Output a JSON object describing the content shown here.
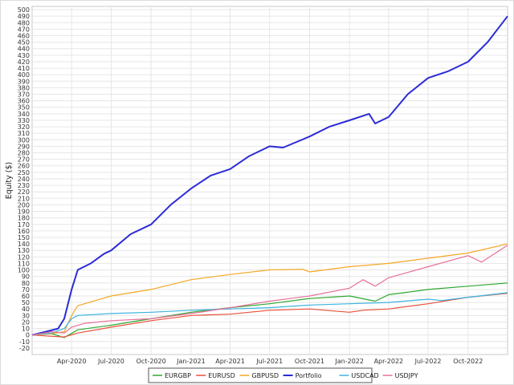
{
  "chart_data": {
    "type": "line",
    "title": "",
    "xlabel": "",
    "ylabel": "Equity ($)",
    "x_ticks": [
      "Apr-2020",
      "Jul-2020",
      "Oct-2020",
      "Jan-2021",
      "Apr-2021",
      "Jul-2021",
      "Oct-2021",
      "Jan-2022",
      "Apr-2022",
      "Jul-2022",
      "Oct-2022"
    ],
    "x_tick_dates": [
      "2020-04-01",
      "2020-07-01",
      "2020-10-01",
      "2021-01-01",
      "2021-04-01",
      "2021-07-01",
      "2021-10-01",
      "2022-01-01",
      "2022-04-01",
      "2022-07-01",
      "2022-10-01"
    ],
    "xlim": [
      "2020-01-01",
      "2022-12-31"
    ],
    "ylim": [
      -30,
      505
    ],
    "y_ticks": [
      -20,
      -10,
      0,
      10,
      20,
      30,
      40,
      50,
      60,
      70,
      80,
      90,
      100,
      110,
      120,
      130,
      140,
      150,
      160,
      170,
      180,
      190,
      200,
      210,
      220,
      230,
      240,
      250,
      260,
      270,
      280,
      290,
      300,
      310,
      320,
      330,
      340,
      350,
      360,
      370,
      380,
      390,
      400,
      410,
      420,
      430,
      440,
      450,
      460,
      470,
      480,
      490,
      500
    ],
    "grid": true,
    "legend_position": "bottom-center",
    "series": [
      {
        "name": "EURGBP",
        "color": "#2ea82e",
        "x": [
          "2020-01-01",
          "2020-02-15",
          "2020-03-15",
          "2020-04-15",
          "2020-07-01",
          "2020-10-01",
          "2021-01-01",
          "2021-04-01",
          "2021-07-01",
          "2021-10-01",
          "2022-01-01",
          "2022-03-01",
          "2022-04-01",
          "2022-07-01",
          "2022-10-01",
          "2022-12-31"
        ],
        "y": [
          0,
          2,
          -4,
          8,
          15,
          25,
          35,
          42,
          48,
          56,
          60,
          52,
          62,
          70,
          75,
          80
        ]
      },
      {
        "name": "EURUSD",
        "color": "#e8503a",
        "x": [
          "2020-01-01",
          "2020-02-15",
          "2020-03-15",
          "2020-04-15",
          "2020-07-01",
          "2020-10-01",
          "2021-01-01",
          "2021-04-01",
          "2021-07-01",
          "2021-10-01",
          "2022-01-01",
          "2022-02-01",
          "2022-04-01",
          "2022-07-01",
          "2022-10-01",
          "2022-12-31"
        ],
        "y": [
          0,
          -2,
          -3,
          3,
          12,
          22,
          30,
          32,
          38,
          40,
          35,
          38,
          40,
          48,
          58,
          64
        ]
      },
      {
        "name": "GBPUSD",
        "color": "#f5a623",
        "x": [
          "2020-01-01",
          "2020-02-15",
          "2020-03-15",
          "2020-04-01",
          "2020-04-15",
          "2020-07-01",
          "2020-10-01",
          "2021-01-01",
          "2021-04-01",
          "2021-07-01",
          "2021-09-15",
          "2021-10-01",
          "2022-01-01",
          "2022-04-01",
          "2022-07-01",
          "2022-10-01",
          "2022-12-31"
        ],
        "y": [
          0,
          2,
          5,
          30,
          45,
          60,
          70,
          85,
          93,
          100,
          101,
          97,
          105,
          110,
          118,
          126,
          140
        ]
      },
      {
        "name": "Portfolio",
        "color": "#2b2bd8",
        "x": [
          "2020-01-01",
          "2020-02-01",
          "2020-03-01",
          "2020-03-15",
          "2020-04-01",
          "2020-04-15",
          "2020-05-15",
          "2020-06-15",
          "2020-07-01",
          "2020-08-15",
          "2020-10-01",
          "2020-11-15",
          "2021-01-01",
          "2021-02-15",
          "2021-04-01",
          "2021-05-15",
          "2021-07-01",
          "2021-08-01",
          "2021-10-01",
          "2021-11-15",
          "2022-01-01",
          "2022-02-15",
          "2022-03-01",
          "2022-04-01",
          "2022-05-15",
          "2022-07-01",
          "2022-08-15",
          "2022-10-01",
          "2022-11-15",
          "2022-12-31"
        ],
        "y": [
          0,
          5,
          10,
          25,
          70,
          100,
          110,
          125,
          130,
          155,
          170,
          200,
          225,
          245,
          255,
          275,
          290,
          288,
          305,
          320,
          330,
          340,
          325,
          335,
          370,
          395,
          405,
          420,
          450,
          490
        ]
      },
      {
        "name": "USDCAD",
        "color": "#3ab4e0",
        "x": [
          "2020-01-01",
          "2020-02-15",
          "2020-03-15",
          "2020-04-01",
          "2020-04-15",
          "2020-07-01",
          "2020-10-01",
          "2021-01-01",
          "2021-04-01",
          "2021-07-01",
          "2021-10-01",
          "2022-01-01",
          "2022-04-01",
          "2022-07-01",
          "2022-08-01",
          "2022-10-01",
          "2022-12-31"
        ],
        "y": [
          0,
          3,
          10,
          25,
          30,
          33,
          35,
          38,
          40,
          42,
          46,
          48,
          50,
          55,
          53,
          58,
          65
        ]
      },
      {
        "name": "USDJPY",
        "color": "#e8709a",
        "x": [
          "2020-01-01",
          "2020-02-15",
          "2020-03-15",
          "2020-04-01",
          "2020-05-01",
          "2020-07-01",
          "2020-10-01",
          "2021-01-01",
          "2021-04-01",
          "2021-07-01",
          "2021-10-01",
          "2022-01-01",
          "2022-02-01",
          "2022-03-01",
          "2022-04-01",
          "2022-07-01",
          "2022-10-01",
          "2022-11-01",
          "2022-12-31"
        ],
        "y": [
          0,
          5,
          3,
          12,
          18,
          22,
          25,
          33,
          42,
          52,
          60,
          72,
          85,
          75,
          88,
          105,
          122,
          112,
          138
        ]
      }
    ]
  }
}
